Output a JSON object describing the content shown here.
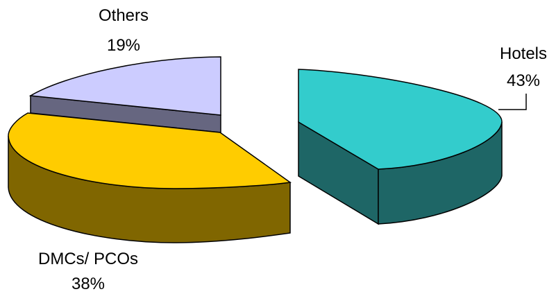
{
  "chart_data": {
    "type": "pie",
    "style": "3d-exploded",
    "title": "",
    "slices": [
      {
        "label": "Hotels",
        "value": 43,
        "value_label": "43%",
        "top_color": "#33CCCC",
        "side_color": "#1E6666"
      },
      {
        "label": "DMCs/ PCOs",
        "value": 38,
        "value_label": "38%",
        "top_color": "#FFCC00",
        "side_color": "#806600"
      },
      {
        "label": "Others",
        "value": 19,
        "value_label": "19%",
        "top_color": "#CCCCFF",
        "side_color": "#666680"
      }
    ],
    "legend": "none"
  }
}
